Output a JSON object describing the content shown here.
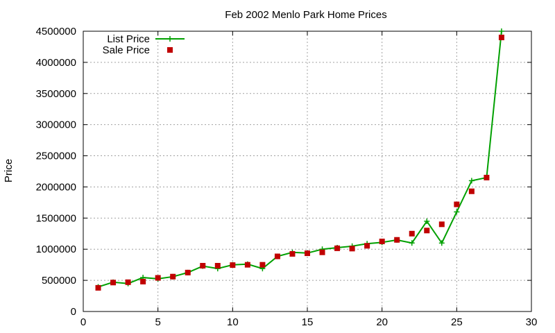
{
  "chart_data": {
    "type": "line",
    "title": "Feb 2002 Menlo Park Home Prices",
    "xlabel": "",
    "ylabel": "Price",
    "xlim": [
      0,
      30
    ],
    "ylim": [
      0,
      4500000
    ],
    "xticks": [
      0,
      5,
      10,
      15,
      20,
      25,
      30
    ],
    "yticks": [
      0,
      500000,
      1000000,
      1500000,
      2000000,
      2500000,
      3000000,
      3500000,
      4000000,
      4500000
    ],
    "grid": true,
    "legend_position": "top-left",
    "x": [
      1,
      2,
      3,
      4,
      5,
      6,
      7,
      8,
      9,
      10,
      11,
      12,
      13,
      14,
      15,
      16,
      17,
      18,
      19,
      20,
      21,
      22,
      23,
      24,
      25,
      26,
      27,
      28
    ],
    "series": [
      {
        "name": "List Price",
        "style": "line-plus",
        "color": "#00a000",
        "values": [
          395000,
          470000,
          449000,
          545000,
          525000,
          559000,
          625000,
          729000,
          689000,
          749000,
          760000,
          689000,
          885000,
          949000,
          938000,
          1000000,
          1025000,
          1049000,
          1089000,
          1110000,
          1149000,
          1100000,
          1449000,
          1099000,
          1599000,
          2100000,
          2150000,
          4500000
        ]
      },
      {
        "name": "Sale Price",
        "style": "square",
        "color": "#c00000",
        "values": [
          380000,
          465000,
          470000,
          480000,
          540000,
          560000,
          625000,
          735000,
          735000,
          745000,
          750000,
          750000,
          885000,
          925000,
          935000,
          950000,
          1015000,
          1010000,
          1055000,
          1125000,
          1150000,
          1250000,
          1300000,
          1400000,
          1720000,
          1930000,
          2150000,
          4400000
        ]
      }
    ]
  }
}
